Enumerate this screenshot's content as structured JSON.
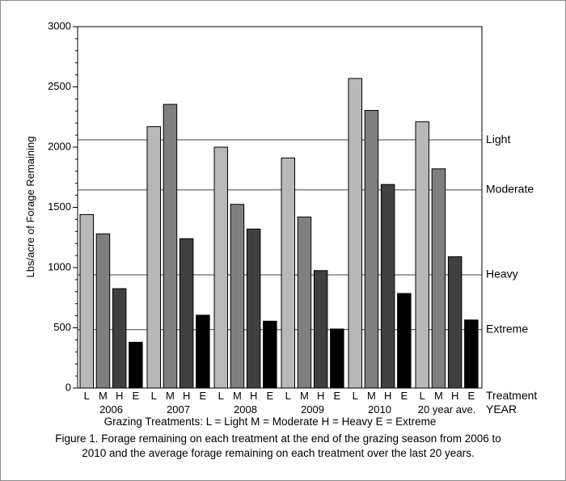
{
  "chart_data": {
    "type": "bar",
    "ylabel": "Lbs/acre of Forage Remaining",
    "ylim": [
      0,
      3000
    ],
    "yticks": [
      0,
      500,
      1000,
      1500,
      2000,
      2500,
      3000
    ],
    "treatment_axis_label": "Treatment",
    "year_axis_label": "YEAR",
    "groups": [
      {
        "label": "2006",
        "values": [
          1440,
          1280,
          825,
          380
        ]
      },
      {
        "label": "2007",
        "values": [
          2170,
          2355,
          1240,
          605
        ]
      },
      {
        "label": "2008",
        "values": [
          2000,
          1525,
          1320,
          555
        ]
      },
      {
        "label": "2009",
        "values": [
          1910,
          1420,
          975,
          490
        ]
      },
      {
        "label": "2010",
        "values": [
          2570,
          2305,
          1690,
          785
        ]
      },
      {
        "label": "20 year ave.",
        "values": [
          2210,
          1820,
          1090,
          565
        ]
      }
    ],
    "treatments": [
      "L",
      "M",
      "H",
      "E"
    ],
    "treatment_colors": [
      "#b8b8b8",
      "#7f7f7f",
      "#404040",
      "#000000"
    ],
    "reference_lines": [
      {
        "label": "Light",
        "value": 2060
      },
      {
        "label": "Moderate",
        "value": 1645
      },
      {
        "label": "Heavy",
        "value": 940
      },
      {
        "label": "Extreme",
        "value": 485
      }
    ],
    "legend_text": "Grazing Treatments:  L = Light  M = Moderate  H = Heavy  E = Extreme",
    "caption_line1": "Figure 1. Forage remaining on each treatment at the end of the grazing season from 2006 to",
    "caption_line2": "2010 and the average forage remaining on each treatment over the last 20 years."
  }
}
